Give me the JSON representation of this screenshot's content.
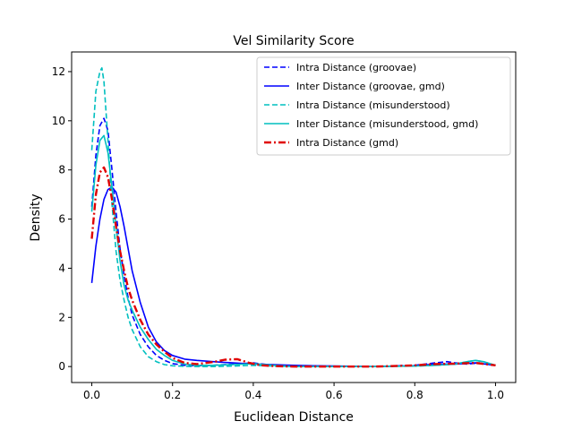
{
  "chart_data": {
    "type": "line",
    "title": "Vel Similarity Score",
    "xlabel": "Euclidean Distance",
    "ylabel": "Density",
    "xlim": [
      -0.05,
      1.05
    ],
    "ylim": [
      -0.65,
      12.8
    ],
    "xticks": [
      0.0,
      0.2,
      0.4,
      0.6,
      0.8,
      1.0
    ],
    "xtick_labels": [
      "0.0",
      "0.2",
      "0.4",
      "0.6",
      "0.8",
      "1.0"
    ],
    "yticks": [
      0,
      2,
      4,
      6,
      8,
      10,
      12
    ],
    "ytick_labels": [
      "0",
      "2",
      "4",
      "6",
      "8",
      "10",
      "12"
    ],
    "grid": false,
    "legend_position": "top-right",
    "series": [
      {
        "name": "Intra Distance (groovae)",
        "color": "#0000ff",
        "style": "dashed",
        "x": [
          0,
          0.01,
          0.02,
          0.03,
          0.04,
          0.05,
          0.06,
          0.07,
          0.08,
          0.09,
          0.1,
          0.12,
          0.14,
          0.16,
          0.18,
          0.2,
          0.23,
          0.26,
          0.3,
          0.35,
          0.4,
          0.45,
          0.5,
          0.55,
          0.6,
          0.7,
          0.8,
          0.85,
          0.88,
          0.9,
          0.93,
          0.96,
          1.0
        ],
        "y": [
          6.5,
          8.6,
          9.8,
          10.1,
          9.6,
          8.0,
          6.3,
          4.8,
          3.7,
          2.8,
          2.1,
          1.3,
          0.8,
          0.45,
          0.25,
          0.12,
          0.05,
          0.03,
          0.05,
          0.1,
          0.15,
          0.05,
          0.0,
          0.0,
          0.0,
          0.0,
          0.05,
          0.15,
          0.2,
          0.15,
          0.1,
          0.15,
          0.05
        ]
      },
      {
        "name": "Inter Distance (groovae, gmd)",
        "color": "#0000ff",
        "style": "solid",
        "x": [
          0,
          0.01,
          0.02,
          0.03,
          0.04,
          0.05,
          0.06,
          0.07,
          0.08,
          0.09,
          0.1,
          0.12,
          0.14,
          0.16,
          0.18,
          0.2,
          0.23,
          0.26,
          0.3,
          0.35,
          0.4,
          0.45,
          0.5,
          0.55,
          0.6,
          0.7,
          0.8,
          0.85,
          0.9,
          0.95,
          1.0
        ],
        "y": [
          3.4,
          4.9,
          6.0,
          6.8,
          7.2,
          7.3,
          7.1,
          6.5,
          5.7,
          4.8,
          3.9,
          2.6,
          1.6,
          1.0,
          0.65,
          0.45,
          0.3,
          0.25,
          0.2,
          0.15,
          0.1,
          0.08,
          0.05,
          0.03,
          0.02,
          0.0,
          0.03,
          0.1,
          0.1,
          0.15,
          0.05
        ]
      },
      {
        "name": "Intra Distance (misunderstood)",
        "color": "#00bfbf",
        "style": "dashed",
        "x": [
          0,
          0.01,
          0.02,
          0.025,
          0.03,
          0.04,
          0.05,
          0.06,
          0.07,
          0.08,
          0.09,
          0.1,
          0.12,
          0.14,
          0.16,
          0.18,
          0.2,
          0.23,
          0.26,
          0.3,
          0.35,
          0.4,
          0.45,
          0.5,
          0.6,
          0.7,
          0.8,
          0.85,
          0.9,
          0.93,
          0.95,
          0.97,
          1.0
        ],
        "y": [
          8.8,
          11.2,
          12.0,
          12.15,
          11.6,
          9.2,
          6.6,
          4.7,
          3.5,
          2.7,
          2.0,
          1.5,
          0.8,
          0.4,
          0.2,
          0.08,
          0.03,
          0.01,
          0.0,
          0.0,
          0.02,
          0.05,
          0.02,
          0.0,
          0.0,
          0.0,
          0.02,
          0.05,
          0.1,
          0.2,
          0.25,
          0.2,
          0.05
        ]
      },
      {
        "name": "Inter Distance (misunderstood, gmd)",
        "color": "#00bfbf",
        "style": "solid",
        "x": [
          0,
          0.01,
          0.02,
          0.03,
          0.04,
          0.05,
          0.06,
          0.07,
          0.08,
          0.09,
          0.1,
          0.12,
          0.14,
          0.16,
          0.18,
          0.2,
          0.23,
          0.26,
          0.3,
          0.35,
          0.4,
          0.45,
          0.5,
          0.6,
          0.7,
          0.8,
          0.85,
          0.9,
          0.93,
          0.95,
          0.97,
          1.0
        ],
        "y": [
          6.3,
          8.2,
          9.2,
          9.4,
          8.7,
          7.3,
          5.7,
          4.3,
          3.3,
          2.7,
          2.3,
          1.6,
          1.1,
          0.7,
          0.45,
          0.25,
          0.1,
          0.05,
          0.05,
          0.08,
          0.12,
          0.05,
          0.0,
          0.0,
          0.0,
          0.02,
          0.05,
          0.1,
          0.2,
          0.25,
          0.2,
          0.05
        ]
      },
      {
        "name": "Intra Distance (gmd)",
        "color": "#e00000",
        "style": "dashdot",
        "x": [
          0,
          0.01,
          0.02,
          0.03,
          0.04,
          0.05,
          0.06,
          0.07,
          0.08,
          0.09,
          0.1,
          0.12,
          0.14,
          0.16,
          0.18,
          0.2,
          0.23,
          0.26,
          0.3,
          0.33,
          0.36,
          0.39,
          0.42,
          0.45,
          0.5,
          0.6,
          0.7,
          0.8,
          0.85,
          0.9,
          0.95,
          1.0
        ],
        "y": [
          5.2,
          7.0,
          7.9,
          8.1,
          7.7,
          6.8,
          5.7,
          4.7,
          3.9,
          3.2,
          2.7,
          1.9,
          1.3,
          0.9,
          0.6,
          0.35,
          0.15,
          0.1,
          0.18,
          0.28,
          0.3,
          0.15,
          0.05,
          0.02,
          0.0,
          0.0,
          0.0,
          0.05,
          0.1,
          0.12,
          0.15,
          0.05
        ]
      }
    ]
  }
}
